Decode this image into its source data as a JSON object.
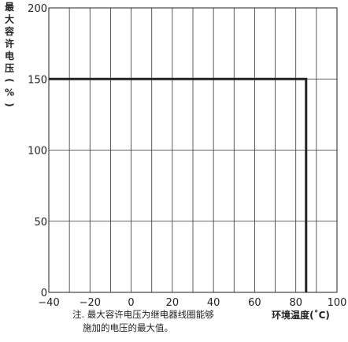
{
  "chart_data": {
    "type": "line",
    "title": "",
    "xlabel": "环境温度(˚C)",
    "ylabel": "最大容许电压(%)",
    "xlim": [
      -40,
      100
    ],
    "ylim": [
      0,
      200
    ],
    "x_ticks": [
      -40,
      -20,
      0,
      20,
      40,
      60,
      80,
      100
    ],
    "x_tick_labels": [
      "−40",
      "−20",
      "0",
      "20",
      "40",
      "60",
      "80",
      "100"
    ],
    "y_ticks": [
      0,
      50,
      100,
      150,
      200
    ],
    "y_tick_labels": [
      "0",
      "50",
      "100",
      "150",
      "200"
    ],
    "grid": true,
    "series": [
      {
        "x": [
          -40,
          85,
          85
        ],
        "y": [
          150,
          150,
          0
        ],
        "color": "#222222"
      }
    ],
    "note_lines": [
      "注. 最大容许电压为继电器线圈能够",
      "施加的电压的最大值。"
    ]
  }
}
